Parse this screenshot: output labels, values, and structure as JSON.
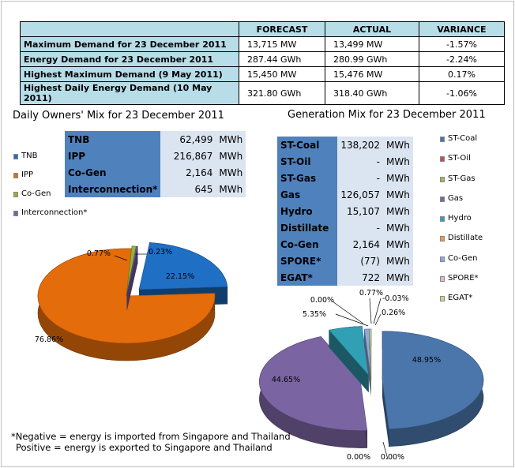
{
  "demand_table": {
    "headers": [
      "",
      "FORECAST",
      "ACTUAL",
      "VARIANCE"
    ],
    "rows": [
      {
        "label": "Maximum Demand for 23 December 2011",
        "forecast": "13,715 MW",
        "actual": "13,499 MW",
        "variance": "-1.57%"
      },
      {
        "label": "Energy Demand for 23 December 2011",
        "forecast": "287.44 GWh",
        "actual": "280.99 GWh",
        "variance": "-2.24%"
      },
      {
        "label": "Highest Maximum Demand (9 May 2011)",
        "forecast": "15,450 MW",
        "actual": "15,476 MW",
        "variance": "0.17%"
      },
      {
        "label": "Highest Daily Energy Demand (10 May 2011)",
        "forecast": "321.80 GWh",
        "actual": "318.40 GWh",
        "variance": "-1.06%"
      }
    ]
  },
  "owners_mix": {
    "title": "Daily Owners' Mix for 23 December 2011",
    "table": [
      {
        "name": "TNB",
        "value": "62,499",
        "unit": "MWh"
      },
      {
        "name": "IPP",
        "value": "216,867",
        "unit": "MWh"
      },
      {
        "name": "Co-Gen",
        "value": "2,164",
        "unit": "MWh"
      },
      {
        "name": "Interconnection*",
        "value": "645",
        "unit": "MWh"
      }
    ]
  },
  "generation_mix": {
    "title": "Generation Mix for 23 December 2011",
    "table": [
      {
        "name": "ST-Coal",
        "value": "138,202",
        "unit": "MWh"
      },
      {
        "name": "ST-Oil",
        "value": "-",
        "unit": "MWh"
      },
      {
        "name": "ST-Gas",
        "value": "-",
        "unit": "MWh"
      },
      {
        "name": "Gas",
        "value": "126,057",
        "unit": "MWh"
      },
      {
        "name": "Hydro",
        "value": "15,107",
        "unit": "MWh"
      },
      {
        "name": "Distillate",
        "value": "-",
        "unit": "MWh"
      },
      {
        "name": "Co-Gen",
        "value": "2,164",
        "unit": "MWh"
      },
      {
        "name": "SPORE*",
        "value": "(77)",
        "unit": "MWh"
      },
      {
        "name": "EGAT*",
        "value": "722",
        "unit": "MWh"
      }
    ]
  },
  "chart_data": [
    {
      "type": "pie",
      "title": "Daily Owners' Mix for 23 December 2011",
      "categories": [
        "TNB",
        "IPP",
        "Co-Gen",
        "Interconnection*"
      ],
      "values": [
        22.15,
        76.86,
        0.77,
        0.23
      ],
      "labels": [
        "22.15%",
        "76.86%",
        "0.77%",
        "0.23%"
      ],
      "colors": [
        "#1f6fc5",
        "#e46c0a",
        "#8eb43a",
        "#7b5fa8"
      ],
      "legend_position": "left"
    },
    {
      "type": "pie",
      "title": "Generation Mix for 23 December 2011",
      "categories": [
        "ST-Coal",
        "ST-Oil",
        "ST-Gas",
        "Gas",
        "Hydro",
        "Distillate",
        "Co-Gen",
        "SPORE*",
        "EGAT*"
      ],
      "values": [
        48.95,
        0.0,
        0.0,
        44.65,
        5.35,
        0.0,
        0.77,
        -0.03,
        0.26
      ],
      "labels": [
        "48.95%",
        "0.00%",
        "0.00%",
        "44.65%",
        "5.35%",
        "0.00%",
        "0.77%",
        "-0.03%",
        "0.26%"
      ],
      "colors": [
        "#4a76ac",
        "#c0504d",
        "#9bbb59",
        "#7b64a2",
        "#31a0b5",
        "#f79646",
        "#8ea9db",
        "#e6b9b8",
        "#c4d79b"
      ],
      "legend_position": "right"
    }
  ],
  "footnote": {
    "line1": "*Negative = energy is imported from Singapore and Thailand",
    "line2": "Positive = energy is exported to Singapore and Thailand"
  }
}
